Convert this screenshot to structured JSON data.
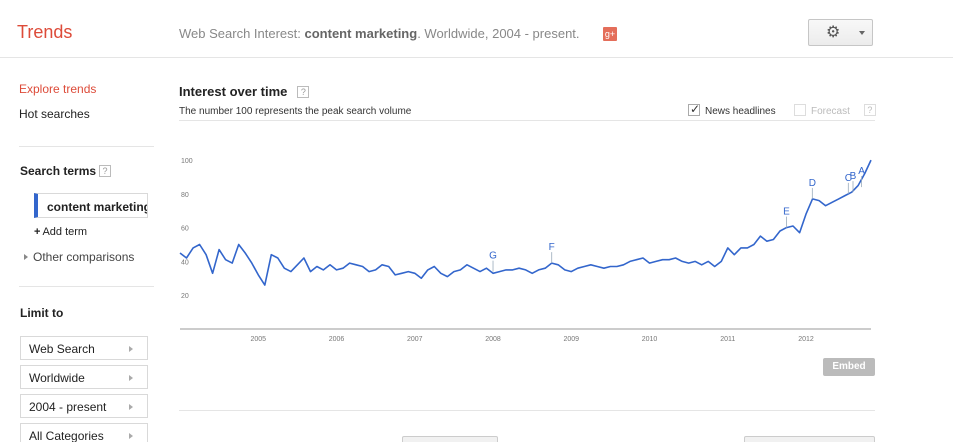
{
  "header": {
    "brand": "Trends",
    "desc_prefix": "Web Search Interest: ",
    "desc_term": "content marketing",
    "desc_suffix": ". Worldwide, 2004 - present.",
    "gplus_label": "g+"
  },
  "sidebar": {
    "explore": "Explore trends",
    "hot": "Hot searches",
    "search_terms_title": "Search terms",
    "term": "content marketing",
    "add_term": "Add term",
    "other_comparisons": "Other comparisons",
    "limit_title": "Limit to",
    "filters": [
      "Web Search",
      "Worldwide",
      "2004 - present",
      "All Categories"
    ]
  },
  "main": {
    "title": "Interest over time",
    "subtitle": "The number 100 represents the peak search volume",
    "news_label": "News headlines",
    "news_checked": true,
    "forecast_label": "Forecast",
    "embed_label": "Embed",
    "help_glyph": "?"
  },
  "chart_data": {
    "type": "line",
    "title": "",
    "xlabel": "",
    "ylabel": "",
    "x_range": [
      2004.0,
      2012.83
    ],
    "ylim": [
      0,
      103
    ],
    "y_ticks": [
      20,
      40,
      60,
      80,
      100
    ],
    "x_tick_labels": [
      {
        "label": "2005",
        "x": 2005
      },
      {
        "label": "2006",
        "x": 2006
      },
      {
        "label": "2007",
        "x": 2007
      },
      {
        "label": "2008",
        "x": 2008
      },
      {
        "label": "2009",
        "x": 2009
      },
      {
        "label": "2010",
        "x": 2010
      },
      {
        "label": "2011",
        "x": 2011
      },
      {
        "label": "2012",
        "x": 2012
      }
    ],
    "color": "#3366cc",
    "series": [
      {
        "values": [
          [
            2004.0,
            45
          ],
          [
            2004.083,
            42
          ],
          [
            2004.167,
            48
          ],
          [
            2004.25,
            50
          ],
          [
            2004.333,
            44
          ],
          [
            2004.417,
            33
          ],
          [
            2004.5,
            47
          ],
          [
            2004.583,
            41
          ],
          [
            2004.667,
            39
          ],
          [
            2004.75,
            50
          ],
          [
            2004.833,
            45
          ],
          [
            2004.917,
            39
          ],
          [
            2005.0,
            32
          ],
          [
            2005.083,
            26
          ],
          [
            2005.167,
            44
          ],
          [
            2005.25,
            42
          ],
          [
            2005.333,
            36
          ],
          [
            2005.417,
            34
          ],
          [
            2005.5,
            38
          ],
          [
            2005.583,
            42
          ],
          [
            2005.667,
            34
          ],
          [
            2005.75,
            37
          ],
          [
            2005.833,
            35
          ],
          [
            2005.917,
            38
          ],
          [
            2006.0,
            35
          ],
          [
            2006.083,
            36
          ],
          [
            2006.167,
            39
          ],
          [
            2006.25,
            38
          ],
          [
            2006.333,
            37
          ],
          [
            2006.417,
            34
          ],
          [
            2006.5,
            35
          ],
          [
            2006.583,
            38
          ],
          [
            2006.667,
            37
          ],
          [
            2006.75,
            32
          ],
          [
            2006.833,
            33
          ],
          [
            2006.917,
            34
          ],
          [
            2007.0,
            33
          ],
          [
            2007.083,
            30
          ],
          [
            2007.167,
            35
          ],
          [
            2007.25,
            37
          ],
          [
            2007.333,
            33
          ],
          [
            2007.417,
            31
          ],
          [
            2007.5,
            34
          ],
          [
            2007.583,
            35
          ],
          [
            2007.667,
            38
          ],
          [
            2007.75,
            36
          ],
          [
            2007.833,
            34
          ],
          [
            2007.917,
            36
          ],
          [
            2008.0,
            33
          ],
          [
            2008.083,
            34
          ],
          [
            2008.167,
            35
          ],
          [
            2008.25,
            35
          ],
          [
            2008.333,
            36
          ],
          [
            2008.417,
            35
          ],
          [
            2008.5,
            33
          ],
          [
            2008.583,
            35
          ],
          [
            2008.667,
            36
          ],
          [
            2008.75,
            39
          ],
          [
            2008.833,
            38
          ],
          [
            2008.917,
            35
          ],
          [
            2009.0,
            34
          ],
          [
            2009.083,
            36
          ],
          [
            2009.167,
            37
          ],
          [
            2009.25,
            38
          ],
          [
            2009.333,
            37
          ],
          [
            2009.417,
            36
          ],
          [
            2009.5,
            37
          ],
          [
            2009.583,
            37
          ],
          [
            2009.667,
            38
          ],
          [
            2009.75,
            40
          ],
          [
            2009.833,
            41
          ],
          [
            2009.917,
            42
          ],
          [
            2010.0,
            39
          ],
          [
            2010.083,
            40
          ],
          [
            2010.167,
            41
          ],
          [
            2010.25,
            41
          ],
          [
            2010.333,
            42
          ],
          [
            2010.417,
            40
          ],
          [
            2010.5,
            39
          ],
          [
            2010.583,
            40
          ],
          [
            2010.667,
            38
          ],
          [
            2010.75,
            40
          ],
          [
            2010.833,
            37
          ],
          [
            2010.917,
            40
          ],
          [
            2011.0,
            48
          ],
          [
            2011.083,
            44
          ],
          [
            2011.167,
            48
          ],
          [
            2011.25,
            48
          ],
          [
            2011.333,
            50
          ],
          [
            2011.417,
            55
          ],
          [
            2011.5,
            52
          ],
          [
            2011.583,
            53
          ],
          [
            2011.667,
            58
          ],
          [
            2011.75,
            60
          ],
          [
            2011.833,
            61
          ],
          [
            2011.917,
            57
          ],
          [
            2012.0,
            68
          ],
          [
            2012.083,
            77
          ],
          [
            2012.167,
            76
          ],
          [
            2012.25,
            73
          ],
          [
            2012.333,
            75
          ],
          [
            2012.417,
            77
          ],
          [
            2012.5,
            79
          ],
          [
            2012.583,
            81
          ],
          [
            2012.667,
            85
          ],
          [
            2012.75,
            92
          ],
          [
            2012.83,
            100
          ]
        ]
      }
    ],
    "annotations": [
      {
        "label": "G",
        "x": 2008.0,
        "y": 34
      },
      {
        "label": "F",
        "x": 2008.75,
        "y": 39
      },
      {
        "label": "E",
        "x": 2011.75,
        "y": 60
      },
      {
        "label": "D",
        "x": 2012.08,
        "y": 77
      },
      {
        "label": "C",
        "x": 2012.54,
        "y": 80
      },
      {
        "label": "B",
        "x": 2012.6,
        "y": 81
      },
      {
        "label": "A",
        "x": 2012.71,
        "y": 84
      }
    ]
  }
}
